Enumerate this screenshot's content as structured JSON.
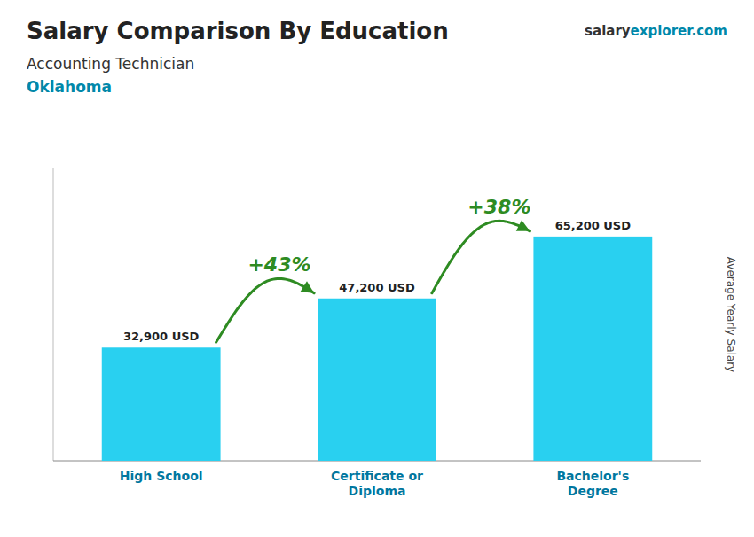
{
  "chart_data": {
    "type": "bar",
    "title": "Salary Comparison By Education",
    "subtitle": [
      "Accounting Technician",
      "Oklahoma"
    ],
    "credit": [
      "salary",
      "explorer",
      ".com"
    ],
    "categories": [
      "High School",
      "Certificate or\nDiploma",
      "Bachelor's\nDegree"
    ],
    "values": [
      32900,
      47200,
      65200
    ],
    "value_labels": [
      "32,900 USD",
      "47,200 USD",
      "65,200 USD"
    ],
    "data_labels": true,
    "annotations": [
      "+43%",
      "+38%"
    ],
    "y_label": "Average Yearly Salary",
    "color": "#29d0f0",
    "ylim": [
      0,
      85000
    ],
    "tick_labels": "x",
    "grid": false
  }
}
